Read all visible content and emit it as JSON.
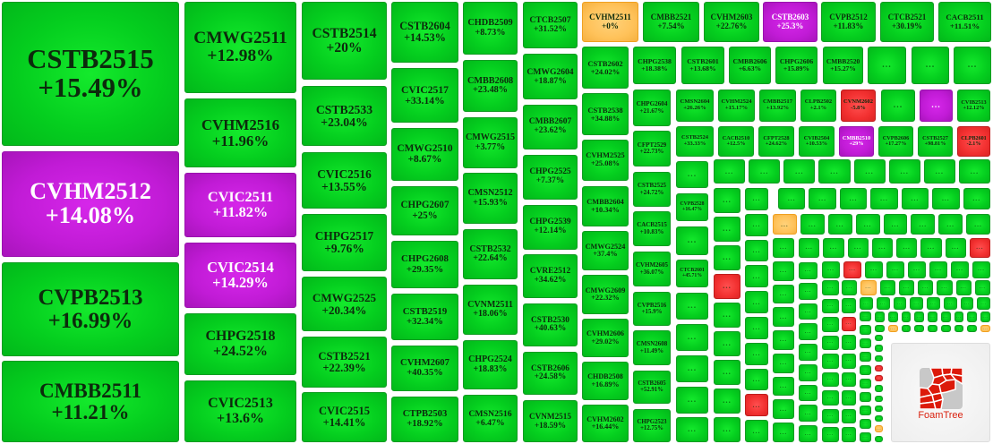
{
  "colors": {
    "up": "#05cf1f",
    "down": "#f23030",
    "flat": "#ffc25a",
    "hot": "#c11bd6"
  },
  "collapsed_label": "...",
  "tiles": [
    {
      "name": "CSTB2515",
      "change": "+15.49%",
      "status": "up"
    },
    {
      "name": "CVHM2512",
      "change": "+14.08%",
      "status": "hot"
    },
    {
      "name": "CVPB2513",
      "change": "+16.99%",
      "status": "up"
    },
    {
      "name": "CMBB2511",
      "change": "+11.21%",
      "status": "up"
    },
    {
      "name": "CMWG2511",
      "change": "+12.98%",
      "status": "up"
    },
    {
      "name": "CVHM2516",
      "change": "+11.96%",
      "status": "up"
    },
    {
      "name": "CVIC2511",
      "change": "+11.82%",
      "status": "hot"
    },
    {
      "name": "CVIC2514",
      "change": "+14.29%",
      "status": "hot"
    },
    {
      "name": "CHPG2518",
      "change": "+24.52%",
      "status": "up"
    },
    {
      "name": "CVIC2513",
      "change": "+13.6%",
      "status": "up"
    },
    {
      "name": "CSTB2514",
      "change": "+20%",
      "status": "up"
    },
    {
      "name": "CSTB2533",
      "change": "+23.04%",
      "status": "up"
    },
    {
      "name": "CVIC2516",
      "change": "+13.55%",
      "status": "up"
    },
    {
      "name": "CHPG2517",
      "change": "+9.76%",
      "status": "up"
    },
    {
      "name": "CMWG2525",
      "change": "+20.34%",
      "status": "up"
    },
    {
      "name": "CSTB2521",
      "change": "+22.39%",
      "status": "up"
    },
    {
      "name": "CVIC2515",
      "change": "+14.41%",
      "status": "up"
    },
    {
      "name": "CSTB2604",
      "change": "+14.53%",
      "status": "up"
    },
    {
      "name": "CVIC2517",
      "change": "+33.14%",
      "status": "up"
    },
    {
      "name": "CMWG2510",
      "change": "+8.67%",
      "status": "up"
    },
    {
      "name": "CHPG2607",
      "change": "+25%",
      "status": "up"
    },
    {
      "name": "CHPG2608",
      "change": "+29.35%",
      "status": "up"
    },
    {
      "name": "CSTB2519",
      "change": "+32.34%",
      "status": "up"
    },
    {
      "name": "CVHM2607",
      "change": "+40.35%",
      "status": "up"
    },
    {
      "name": "CTPB2503",
      "change": "+18.92%",
      "status": "up"
    },
    {
      "name": "CHDB2509",
      "change": "+8.73%",
      "status": "up"
    },
    {
      "name": "CMBB2608",
      "change": "+23.48%",
      "status": "up"
    },
    {
      "name": "CMWG2515",
      "change": "+3.77%",
      "status": "up"
    },
    {
      "name": "CMSN2512",
      "change": "+15.93%",
      "status": "up"
    },
    {
      "name": "CSTB2532",
      "change": "+22.64%",
      "status": "up"
    },
    {
      "name": "CVNM2511",
      "change": "+18.06%",
      "status": "up"
    },
    {
      "name": "CHPG2524",
      "change": "+18.83%",
      "status": "up"
    },
    {
      "name": "CMSN2516",
      "change": "+6.47%",
      "status": "up"
    },
    {
      "name": "CTCB2507",
      "change": "+31.52%",
      "status": "up"
    },
    {
      "name": "CMWG2604",
      "change": "+18.87%",
      "status": "up"
    },
    {
      "name": "CMBB2607",
      "change": "+23.62%",
      "status": "up"
    },
    {
      "name": "CHPG2525",
      "change": "+7.37%",
      "status": "up"
    },
    {
      "name": "CHPG2539",
      "change": "+12.14%",
      "status": "up"
    },
    {
      "name": "CVRE2512",
      "change": "+34.62%",
      "status": "up"
    },
    {
      "name": "CSTB2530",
      "change": "+40.63%",
      "status": "up"
    },
    {
      "name": "CSTB2606",
      "change": "+24.58%",
      "status": "up"
    },
    {
      "name": "CVNM2515",
      "change": "+18.59%",
      "status": "up"
    },
    {
      "name": "CVHM2511",
      "change": "+0%",
      "status": "flat"
    },
    {
      "name": "CMBB2521",
      "change": "+7.54%",
      "status": "up"
    },
    {
      "name": "CVHM2603",
      "change": "+22.76%",
      "status": "up"
    },
    {
      "name": "CSTB2603",
      "change": "+25.3%",
      "status": "hot"
    },
    {
      "name": "CVPB2512",
      "change": "+11.83%",
      "status": "up"
    },
    {
      "name": "CTCB2521",
      "change": "+30.19%",
      "status": "up"
    },
    {
      "name": "CACB2511",
      "change": "+11.51%",
      "status": "up"
    },
    {
      "name": "CSTB2602",
      "change": "+24.02%",
      "status": "up"
    },
    {
      "name": "CSTB2538",
      "change": "+34.88%",
      "status": "up"
    },
    {
      "name": "CVHM2525",
      "change": "+25.08%",
      "status": "up"
    },
    {
      "name": "CMBB2604",
      "change": "+10.34%",
      "status": "up"
    },
    {
      "name": "CMWG2524",
      "change": "+37.4%",
      "status": "up"
    },
    {
      "name": "CMWG2609",
      "change": "+22.32%",
      "status": "up"
    },
    {
      "name": "CVHM2606",
      "change": "+29.02%",
      "status": "up"
    },
    {
      "name": "CHDB2508",
      "change": "+16.89%",
      "status": "up"
    },
    {
      "name": "CVHM2602",
      "change": "+16.44%",
      "status": "up"
    },
    {
      "name": "CHPG2538",
      "change": "+18.38%",
      "status": "up"
    },
    {
      "name": "CSTB2601",
      "change": "+13.68%",
      "status": "up"
    },
    {
      "name": "CMBB2606",
      "change": "+6.63%",
      "status": "up"
    },
    {
      "name": "CHPG2606",
      "change": "+15.89%",
      "status": "up"
    },
    {
      "name": "CMBB2520",
      "change": "+15.27%",
      "status": "up"
    },
    {
      "name": "...",
      "change": "",
      "status": "up"
    },
    {
      "name": "...",
      "change": "",
      "status": "up"
    },
    {
      "name": "...",
      "change": "",
      "status": "up"
    },
    {
      "name": "CHPG2604",
      "change": "+21.67%",
      "status": "up"
    },
    {
      "name": "CFPT2529",
      "change": "+22.73%",
      "status": "up"
    },
    {
      "name": "CSTB2525",
      "change": "+24.72%",
      "status": "up"
    },
    {
      "name": "CACB2515",
      "change": "+10.83%",
      "status": "up"
    },
    {
      "name": "CVHM2605",
      "change": "+36.07%",
      "status": "up"
    },
    {
      "name": "CVPB2516",
      "change": "+15.9%",
      "status": "up"
    },
    {
      "name": "CMSN2608",
      "change": "+11.49%",
      "status": "up"
    },
    {
      "name": "CSTB2605",
      "change": "+52.91%",
      "status": "up"
    },
    {
      "name": "CHPG2523",
      "change": "+12.75%",
      "status": "up"
    },
    {
      "name": "CMSN2604",
      "change": "+26.26%",
      "status": "up"
    },
    {
      "name": "CVHM2524",
      "change": "+15.17%",
      "status": "up"
    },
    {
      "name": "CMBB2517",
      "change": "+13.92%",
      "status": "up"
    },
    {
      "name": "CLPB2502",
      "change": "+2.1%",
      "status": "up"
    },
    {
      "name": "CVNM2602",
      "change": "-5.8%",
      "status": "down"
    },
    {
      "name": "...",
      "change": "",
      "status": "up"
    },
    {
      "name": "...",
      "change": "",
      "status": "hot"
    },
    {
      "name": "CVIB2513",
      "change": "+12.12%",
      "status": "up"
    },
    {
      "name": "CSTB2524",
      "change": "+33.33%",
      "status": "up"
    },
    {
      "name": "CACB2510",
      "change": "+12.5%",
      "status": "up"
    },
    {
      "name": "CFPT2528",
      "change": "+24.62%",
      "status": "up"
    },
    {
      "name": "CVIB2504",
      "change": "+10.53%",
      "status": "up"
    },
    {
      "name": "CMBB2510",
      "change": "+29%",
      "status": "hot"
    },
    {
      "name": "CVPB2606",
      "change": "+17.27%",
      "status": "up"
    },
    {
      "name": "CSTB2527",
      "change": "+98.81%",
      "status": "up"
    },
    {
      "name": "CLPB2601",
      "change": "-2.1%",
      "status": "down"
    },
    {
      "name": "...",
      "change": "",
      "status": "up"
    },
    {
      "name": "CVPB2528",
      "change": "+16.47%",
      "status": "up"
    },
    {
      "name": "...",
      "change": "",
      "status": "up"
    },
    {
      "name": "CTCB2601",
      "change": "+45.71%",
      "status": "up"
    },
    {
      "name": "...",
      "change": "",
      "status": "up"
    },
    {
      "name": "...",
      "change": "",
      "status": "up"
    },
    {
      "name": "...",
      "change": "",
      "status": "up"
    },
    {
      "name": "...",
      "change": "",
      "status": "up"
    },
    {
      "name": "...",
      "change": "",
      "status": "up"
    }
  ],
  "collapsed_groups": [
    [
      "up",
      "up",
      "up",
      "up",
      "up",
      "up",
      "up",
      "up"
    ],
    [
      "up",
      "up",
      "up",
      "up",
      "up",
      "up",
      "up"
    ],
    [
      "flat",
      "up",
      "up",
      "up",
      "up",
      "up",
      "up",
      "up"
    ],
    [
      "up",
      "up",
      "up",
      "down",
      "up",
      "up",
      "up",
      "up",
      "up"
    ],
    [
      "up",
      "up",
      "up",
      "up",
      "up",
      "up",
      "up",
      "up",
      "down",
      "up"
    ],
    [
      "up",
      "up",
      "up",
      "up",
      "up",
      "up",
      "up",
      "up",
      "up"
    ],
    [
      "up",
      "up",
      "up",
      "up",
      "up",
      "up",
      "up",
      "down"
    ],
    [
      "up",
      "up",
      "up",
      "up",
      "up",
      "up",
      "up",
      "up",
      "up"
    ],
    [
      "up",
      "down",
      "up",
      "up",
      "up",
      "up",
      "up",
      "up"
    ],
    [
      "up",
      "up",
      "up",
      "up",
      "up",
      "up",
      "up",
      "up",
      "up"
    ],
    [
      "up",
      "flat",
      "up",
      "up",
      "up",
      "up",
      "up",
      "up"
    ],
    [
      "up",
      "down",
      "up",
      "up",
      "up",
      "up",
      "up",
      "up"
    ],
    [
      "up",
      "up",
      "up",
      "up",
      "up",
      "up",
      "up",
      "up"
    ],
    [
      "up",
      "up",
      "up",
      "up",
      "up",
      "up",
      "up",
      "up",
      "up",
      "up"
    ],
    [
      "up",
      "up",
      "up",
      "up",
      "up",
      "up",
      "up",
      "up",
      "up"
    ],
    [
      "up",
      "flat",
      "up",
      "up",
      "up",
      "up",
      "up",
      "up",
      "flat"
    ],
    [
      "up",
      "up",
      "up",
      "down",
      "down",
      "up",
      "up",
      "up",
      "up",
      "flat",
      "up"
    ]
  ],
  "logo": {
    "text": "FoamTree"
  }
}
